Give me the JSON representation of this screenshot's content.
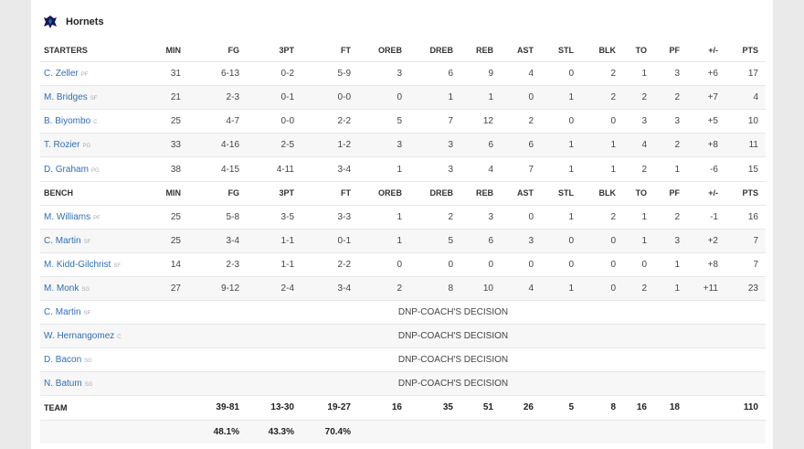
{
  "team": {
    "name": "Hornets",
    "logo_icon": "hornet-logo-icon"
  },
  "columns": [
    "MIN",
    "FG",
    "3PT",
    "FT",
    "OREB",
    "DREB",
    "REB",
    "AST",
    "STL",
    "BLK",
    "TO",
    "PF",
    "+/-",
    "PTS"
  ],
  "starters_label": "STARTERS",
  "bench_label": "BENCH",
  "starters": [
    {
      "name": "C. Zeller",
      "pos": "PF",
      "stats": [
        "31",
        "6-13",
        "0-2",
        "5-9",
        "3",
        "6",
        "9",
        "4",
        "0",
        "2",
        "1",
        "3",
        "+6",
        "17"
      ]
    },
    {
      "name": "M. Bridges",
      "pos": "SF",
      "stats": [
        "21",
        "2-3",
        "0-1",
        "0-0",
        "0",
        "1",
        "1",
        "0",
        "1",
        "2",
        "2",
        "2",
        "+7",
        "4"
      ]
    },
    {
      "name": "B. Biyombo",
      "pos": "C",
      "stats": [
        "25",
        "4-7",
        "0-0",
        "2-2",
        "5",
        "7",
        "12",
        "2",
        "0",
        "0",
        "3",
        "3",
        "+5",
        "10"
      ]
    },
    {
      "name": "T. Rozier",
      "pos": "PG",
      "stats": [
        "33",
        "4-16",
        "2-5",
        "1-2",
        "3",
        "3",
        "6",
        "6",
        "1",
        "1",
        "4",
        "2",
        "+8",
        "11"
      ]
    },
    {
      "name": "D. Graham",
      "pos": "PG",
      "stats": [
        "38",
        "4-15",
        "4-11",
        "3-4",
        "1",
        "3",
        "4",
        "7",
        "1",
        "1",
        "2",
        "1",
        "-6",
        "15"
      ]
    }
  ],
  "bench": [
    {
      "name": "M. Williams",
      "pos": "PF",
      "stats": [
        "25",
        "5-8",
        "3-5",
        "3-3",
        "1",
        "2",
        "3",
        "0",
        "1",
        "2",
        "1",
        "2",
        "-1",
        "16"
      ]
    },
    {
      "name": "C. Martin",
      "pos": "SF",
      "stats": [
        "25",
        "3-4",
        "1-1",
        "0-1",
        "1",
        "5",
        "6",
        "3",
        "0",
        "0",
        "1",
        "3",
        "+2",
        "7"
      ]
    },
    {
      "name": "M. Kidd-Gilchrist",
      "pos": "SF",
      "stats": [
        "14",
        "2-3",
        "1-1",
        "2-2",
        "0",
        "0",
        "0",
        "0",
        "0",
        "0",
        "0",
        "1",
        "+8",
        "7"
      ]
    },
    {
      "name": "M. Monk",
      "pos": "SG",
      "stats": [
        "27",
        "9-12",
        "2-4",
        "3-4",
        "2",
        "8",
        "10",
        "4",
        "1",
        "0",
        "2",
        "1",
        "+11",
        "23"
      ]
    }
  ],
  "dnp": [
    {
      "name": "C. Martin",
      "pos": "SF",
      "note": "DNP-COACH'S DECISION"
    },
    {
      "name": "W. Hernangomez",
      "pos": "C",
      "note": "DNP-COACH'S DECISION"
    },
    {
      "name": "D. Bacon",
      "pos": "SG",
      "note": "DNP-COACH'S DECISION"
    },
    {
      "name": "N. Batum",
      "pos": "SG",
      "note": "DNP-COACH'S DECISION"
    }
  ],
  "team_totals": {
    "label": "TEAM",
    "stats": [
      "",
      "39-81",
      "13-30",
      "19-27",
      "16",
      "35",
      "51",
      "26",
      "5",
      "8",
      "16",
      "18",
      "",
      "110"
    ]
  },
  "team_pct": {
    "stats": [
      "",
      "48.1%",
      "43.3%",
      "70.4%",
      "",
      "",
      "",
      "",
      "",
      "",
      "",
      "",
      "",
      ""
    ]
  },
  "colors": {
    "link": "#2f6eb5",
    "logo": "#1d1160",
    "logo_accent": "#00788c",
    "row_alt": "#f7f7f7"
  }
}
